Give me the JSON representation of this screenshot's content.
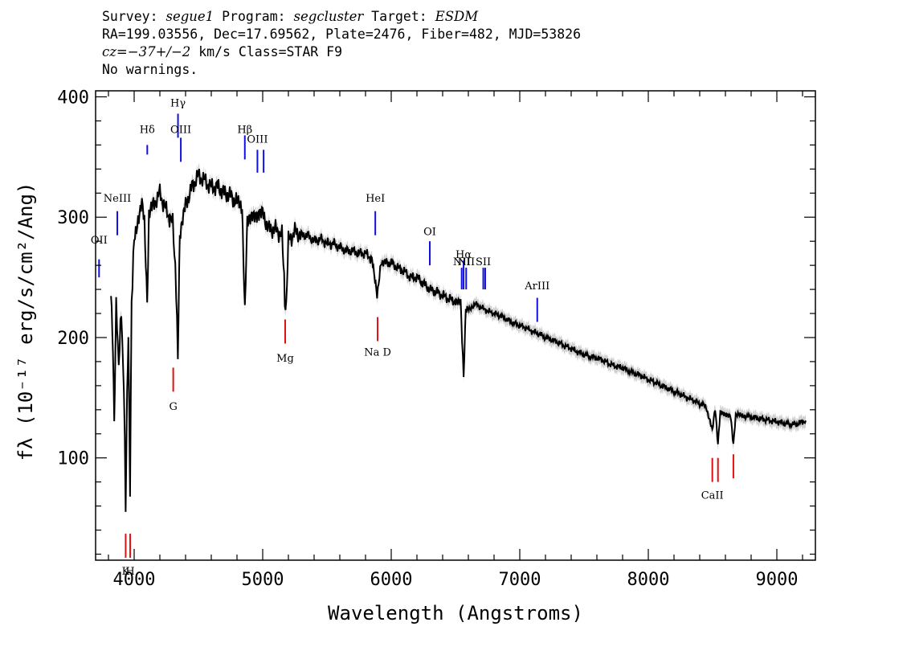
{
  "header": {
    "line1": {
      "survey_label": "Survey:",
      "survey": "segue1",
      "program_label": "Program:",
      "program": "segcluster",
      "target_label": "Target:",
      "target": "ESDM"
    },
    "line2": "RA=199.03556, Dec=17.69562, Plate=2476, Fiber=482, MJD=53826",
    "line3": {
      "cz": "cz=−37+/−2",
      "rest": " km/s Class=STAR F9"
    },
    "line4": "No warnings."
  },
  "chart_data": {
    "type": "line",
    "xlabel": "Wavelength (Angstroms)",
    "ylabel": "fλ (10⁻¹⁷ erg/s/cm²/Ang)",
    "xlim": [
      3700,
      9300
    ],
    "ylim": [
      15,
      405
    ],
    "xticks": [
      4000,
      5000,
      6000,
      7000,
      8000,
      9000
    ],
    "yticks": [
      100,
      200,
      300,
      400
    ],
    "grid": false,
    "series": [
      {
        "style": "black-line-with-gray-error",
        "points": [
          [
            3820,
            236
          ],
          [
            3835,
            195
          ],
          [
            3845,
            128
          ],
          [
            3860,
            225
          ],
          [
            3880,
            180
          ],
          [
            3900,
            220
          ],
          [
            3920,
            160
          ],
          [
            3934,
            60
          ],
          [
            3945,
            150
          ],
          [
            3955,
            200
          ],
          [
            3968,
            75
          ],
          [
            3980,
            230
          ],
          [
            4000,
            280
          ],
          [
            4030,
            300
          ],
          [
            4060,
            310
          ],
          [
            4080,
            300
          ],
          [
            4101,
            230
          ],
          [
            4115,
            300
          ],
          [
            4150,
            310
          ],
          [
            4200,
            320
          ],
          [
            4250,
            305
          ],
          [
            4300,
            295
          ],
          [
            4320,
            260
          ],
          [
            4340,
            185
          ],
          [
            4355,
            280
          ],
          [
            4400,
            310
          ],
          [
            4450,
            325
          ],
          [
            4500,
            335
          ],
          [
            4550,
            330
          ],
          [
            4600,
            325
          ],
          [
            4650,
            325
          ],
          [
            4700,
            320
          ],
          [
            4750,
            318
          ],
          [
            4800,
            312
          ],
          [
            4840,
            305
          ],
          [
            4861,
            218
          ],
          [
            4880,
            300
          ],
          [
            4920,
            305
          ],
          [
            4960,
            300
          ],
          [
            5000,
            302
          ],
          [
            5050,
            290
          ],
          [
            5100,
            290
          ],
          [
            5150,
            285
          ],
          [
            5167,
            245
          ],
          [
            5172,
            225
          ],
          [
            5183,
            222
          ],
          [
            5200,
            280
          ],
          [
            5250,
            288
          ],
          [
            5300,
            285
          ],
          [
            5350,
            285
          ],
          [
            5400,
            280
          ],
          [
            5450,
            282
          ],
          [
            5500,
            278
          ],
          [
            5550,
            278
          ],
          [
            5600,
            275
          ],
          [
            5650,
            272
          ],
          [
            5700,
            272
          ],
          [
            5750,
            270
          ],
          [
            5800,
            270
          ],
          [
            5850,
            265
          ],
          [
            5890,
            233
          ],
          [
            5896,
            238
          ],
          [
            5920,
            264
          ],
          [
            5950,
            262
          ],
          [
            6000,
            262
          ],
          [
            6050,
            258
          ],
          [
            6100,
            255
          ],
          [
            6150,
            250
          ],
          [
            6200,
            250
          ],
          [
            6250,
            245
          ],
          [
            6300,
            240
          ],
          [
            6350,
            238
          ],
          [
            6400,
            235
          ],
          [
            6450,
            232
          ],
          [
            6500,
            230
          ],
          [
            6540,
            228
          ],
          [
            6563,
            165
          ],
          [
            6580,
            222
          ],
          [
            6620,
            225
          ],
          [
            6650,
            228
          ],
          [
            6700,
            225
          ],
          [
            6750,
            222
          ],
          [
            6800,
            220
          ],
          [
            6850,
            218
          ],
          [
            6900,
            215
          ],
          [
            6950,
            212
          ],
          [
            7000,
            210
          ],
          [
            7050,
            208
          ],
          [
            7100,
            205
          ],
          [
            7150,
            203
          ],
          [
            7200,
            200
          ],
          [
            7250,
            198
          ],
          [
            7300,
            196
          ],
          [
            7350,
            193
          ],
          [
            7400,
            191
          ],
          [
            7450,
            188
          ],
          [
            7500,
            186
          ],
          [
            7550,
            184
          ],
          [
            7600,
            183
          ],
          [
            7650,
            181
          ],
          [
            7700,
            178
          ],
          [
            7750,
            176
          ],
          [
            7800,
            175
          ],
          [
            7850,
            172
          ],
          [
            7900,
            170
          ],
          [
            7950,
            168
          ],
          [
            8000,
            165
          ],
          [
            8050,
            163
          ],
          [
            8100,
            160
          ],
          [
            8150,
            158
          ],
          [
            8200,
            155
          ],
          [
            8250,
            153
          ],
          [
            8300,
            150
          ],
          [
            8350,
            148
          ],
          [
            8400,
            145
          ],
          [
            8450,
            143
          ],
          [
            8498,
            122
          ],
          [
            8520,
            140
          ],
          [
            8542,
            110
          ],
          [
            8560,
            138
          ],
          [
            8600,
            137
          ],
          [
            8640,
            136
          ],
          [
            8662,
            112
          ],
          [
            8680,
            135
          ],
          [
            8750,
            135
          ],
          [
            8800,
            134
          ],
          [
            8850,
            133
          ],
          [
            8900,
            132
          ],
          [
            8950,
            131
          ],
          [
            9000,
            130
          ],
          [
            9050,
            129
          ],
          [
            9100,
            128
          ],
          [
            9150,
            128
          ],
          [
            9200,
            130
          ],
          [
            9225,
            131
          ]
        ]
      }
    ],
    "emission_lines": [
      {
        "label": "OII",
        "wavelength": 3727,
        "y_top": 265,
        "y_bottom": 250,
        "label_y": 278
      },
      {
        "label": "NeIII",
        "wavelength": 3869,
        "y_top": 305,
        "y_bottom": 285,
        "label_y": 313
      },
      {
        "label": "Hδ",
        "wavelength": 4102,
        "y_top": 360,
        "y_bottom": 352,
        "label_y": 370
      },
      {
        "label": "Hγ",
        "wavelength": 4341,
        "y_top": 386,
        "y_bottom": 366,
        "label_y": 392
      },
      {
        "label": "OIII",
        "wavelength": 4363,
        "y_top": 366,
        "y_bottom": 346,
        "label_y": 370
      },
      {
        "label": "Hβ",
        "wavelength": 4861,
        "y_top": 368,
        "y_bottom": 348,
        "label_y": 370
      },
      {
        "label": "OIII",
        "wavelength": 4959,
        "y_top": 356,
        "y_bottom": 337,
        "label_y": 362
      },
      {
        "label": "",
        "wavelength": 5007,
        "y_top": 356,
        "y_bottom": 337,
        "label_y": 362
      },
      {
        "label": "HeI",
        "wavelength": 5876,
        "y_top": 305,
        "y_bottom": 285,
        "label_y": 313
      },
      {
        "label": "OI",
        "wavelength": 6300,
        "y_top": 280,
        "y_bottom": 260,
        "label_y": 285
      },
      {
        "label": "NII",
        "wavelength": 6548,
        "y_top": 258,
        "y_bottom": 240,
        "label_y": 260
      },
      {
        "label": "Hα",
        "wavelength": 6563,
        "y_top": 264,
        "y_bottom": 240,
        "label_y": 266
      },
      {
        "label": "NII",
        "wavelength": 6583,
        "y_top": 258,
        "y_bottom": 240,
        "label_y": 260
      },
      {
        "label": "SII",
        "wavelength": 6716,
        "y_top": 258,
        "y_bottom": 240,
        "label_y": 260
      },
      {
        "label": "",
        "wavelength": 6731,
        "y_top": 258,
        "y_bottom": 240,
        "label_y": 260
      },
      {
        "label": "ArIII",
        "wavelength": 7136,
        "y_top": 233,
        "y_bottom": 213,
        "label_y": 240
      }
    ],
    "absorption_lines": [
      {
        "label": "K",
        "wavelength": 3934,
        "y_top": 37,
        "y_bottom": 17,
        "label_y": 3
      },
      {
        "label": "H",
        "wavelength": 3969,
        "y_top": 37,
        "y_bottom": 17,
        "label_y": 3
      },
      {
        "label": "G",
        "wavelength": 4304,
        "y_top": 175,
        "y_bottom": 155,
        "label_y": 140
      },
      {
        "label": "Mg",
        "wavelength": 5175,
        "y_top": 215,
        "y_bottom": 195,
        "label_y": 180
      },
      {
        "label": "Na  D",
        "wavelength": 5894,
        "y_top": 217,
        "y_bottom": 197,
        "label_y": 185
      },
      {
        "label": "CaII",
        "wavelength": 8498,
        "y_top": 100,
        "y_bottom": 80,
        "label_y": 66
      },
      {
        "label": "",
        "wavelength": 8542,
        "y_top": 100,
        "y_bottom": 80,
        "label_y": 66
      },
      {
        "label": "",
        "wavelength": 8662,
        "y_top": 103,
        "y_bottom": 83,
        "label_y": 66
      }
    ]
  },
  "colors": {
    "emission": "#1010e0",
    "absorption": "#e01010",
    "spectrum": "#000000",
    "error": "#aaaaaa"
  }
}
